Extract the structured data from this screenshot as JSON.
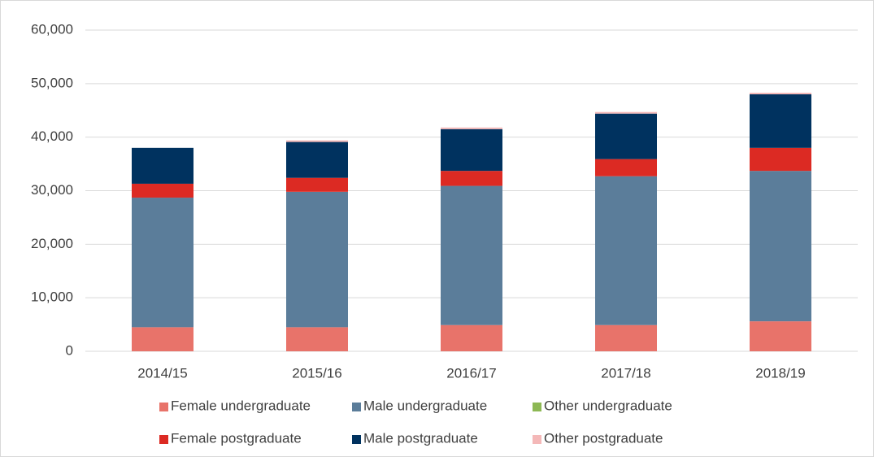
{
  "chart_data": {
    "type": "stacked_bar",
    "categories": [
      "2014/15",
      "2015/16",
      "2016/17",
      "2017/18",
      "2018/19"
    ],
    "series": [
      {
        "name": "Female undergraduate",
        "color": "#e8736a",
        "values": [
          4500,
          4500,
          4900,
          4900,
          5600
        ]
      },
      {
        "name": "Male undergraduate",
        "color": "#5b7d9a",
        "values": [
          24200,
          25300,
          26000,
          27800,
          28100
        ]
      },
      {
        "name": "Other undergraduate",
        "color": "#8db854",
        "values": [
          0,
          0,
          0,
          0,
          0
        ]
      },
      {
        "name": "Female postgraduate",
        "color": "#dc2a23",
        "values": [
          2600,
          2600,
          2800,
          3200,
          4300
        ]
      },
      {
        "name": "Male postgraduate",
        "color": "#00325f",
        "values": [
          6700,
          6700,
          7800,
          8500,
          10000
        ]
      },
      {
        "name": "Other postgraduate",
        "color": "#f4b8b8",
        "values": [
          0,
          300,
          300,
          300,
          300
        ]
      }
    ],
    "ylim": [
      0,
      60000
    ],
    "yticks": [
      0,
      {
        "value": 10000,
        "label": "10,000"
      },
      {
        "value": 20000,
        "label": "20,000"
      },
      {
        "value": 30000,
        "label": "30,000"
      },
      {
        "value": 40000,
        "label": "40,000"
      },
      {
        "value": 50000,
        "label": "50,000"
      },
      {
        "value": 60000,
        "label": "60,000"
      }
    ],
    "grid": true,
    "legend": "bottom"
  }
}
